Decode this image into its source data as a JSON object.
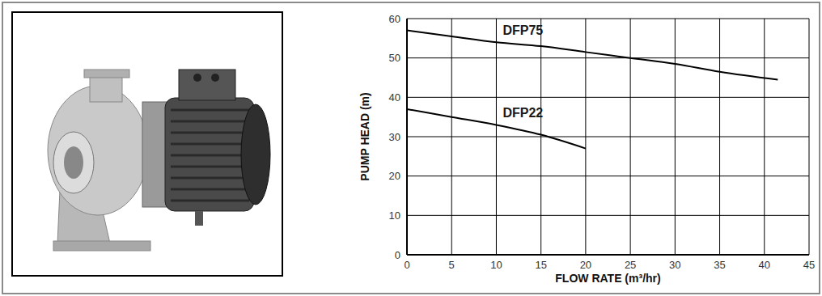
{
  "chart_data": {
    "type": "line",
    "x": [
      0,
      5,
      10,
      15,
      20,
      25,
      30,
      35,
      41.5
    ],
    "xlim": [
      0,
      45
    ],
    "xticks": [
      0,
      5,
      10,
      15,
      20,
      25,
      30,
      35,
      40,
      45
    ],
    "ylim": [
      0,
      60
    ],
    "yticks": [
      0,
      10,
      20,
      30,
      40,
      50,
      60
    ],
    "grid": true,
    "xlabel": "FLOW RATE (m³/hr)",
    "ylabel": "PUMP HEAD (m)",
    "series": [
      {
        "name": "DFP75",
        "color": "#000000",
        "values": [
          57,
          55.5,
          54,
          53,
          51.5,
          50,
          48.5,
          46.5,
          44.5
        ]
      },
      {
        "name": "DFP22",
        "color": "#000000",
        "values": [
          37,
          35,
          33,
          30.5,
          27,
          null,
          null,
          null,
          null
        ]
      }
    ]
  }
}
